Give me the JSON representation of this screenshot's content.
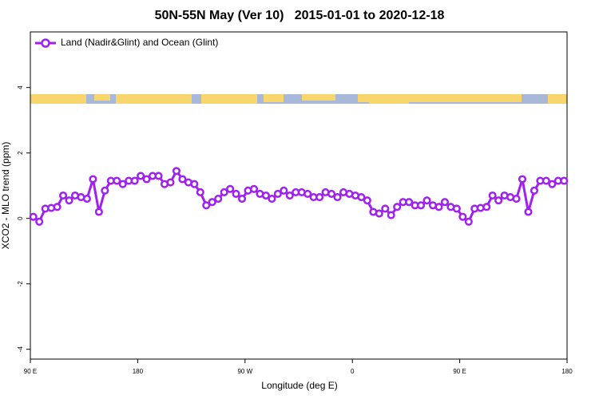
{
  "chart_data": {
    "type": "line",
    "title": "50N-55N May (Ver 10)   2015-01-01 to 2020-12-18",
    "x_label": "Longitude (deg E)",
    "y_label": "XCO2 - MLO trend (ppm)",
    "legend_position": "top-left",
    "xlim": [
      90,
      540
    ],
    "xticks": [
      {
        "value": 90,
        "label": "90 E"
      },
      {
        "value": 180,
        "label": "180"
      },
      {
        "value": 270,
        "label": "90 W"
      },
      {
        "value": 360,
        "label": "0"
      },
      {
        "value": 450,
        "label": "90 E"
      },
      {
        "value": 540,
        "label": "180"
      }
    ],
    "ylim": [
      -4.3,
      5.7
    ],
    "yticks": [
      -4,
      -2,
      0,
      2,
      4
    ],
    "x": [
      92.5,
      97.5,
      102.5,
      107.5,
      112.5,
      117.5,
      122.5,
      127.5,
      132.5,
      137.5,
      142.5,
      147.5,
      152.5,
      157.5,
      162.5,
      167.5,
      172.5,
      177.5,
      182.5,
      187.5,
      192.5,
      197.5,
      202.5,
      207.5,
      212.5,
      217.5,
      222.5,
      227.5,
      232.5,
      237.5,
      242.5,
      247.5,
      252.5,
      257.5,
      262.5,
      267.5,
      272.5,
      277.5,
      282.5,
      287.5,
      292.5,
      297.5,
      302.5,
      307.5,
      312.5,
      317.5,
      322.5,
      327.5,
      332.5,
      337.5,
      342.5,
      347.5,
      352.5,
      357.5,
      362.5,
      367.5,
      372.5,
      377.5,
      382.5,
      387.5,
      392.5,
      397.5,
      402.5,
      407.5,
      412.5,
      417.5,
      422.5,
      427.5,
      432.5,
      437.5,
      442.5,
      447.5,
      452.5,
      457.5,
      462.5,
      467.5,
      472.5,
      477.5,
      482.5,
      487.5,
      492.5,
      497.5,
      502.5,
      507.5,
      512.5,
      517.5,
      522.5,
      527.5,
      532.5,
      537.5
    ],
    "series": [
      {
        "name": "Land (Nadir&Glint) and Ocean (Glint)",
        "color": "#a020f0",
        "values": [
          0.05,
          -0.1,
          0.3,
          0.32,
          0.35,
          0.7,
          0.55,
          0.7,
          0.65,
          0.6,
          1.2,
          0.2,
          0.85,
          1.15,
          1.15,
          1.05,
          1.15,
          1.15,
          1.3,
          1.2,
          1.3,
          1.3,
          1.05,
          1.1,
          1.45,
          1.2,
          1.1,
          1.05,
          0.8,
          0.4,
          0.5,
          0.6,
          0.8,
          0.9,
          0.75,
          0.6,
          0.85,
          0.9,
          0.75,
          0.7,
          0.6,
          0.75,
          0.85,
          0.7,
          0.8,
          0.8,
          0.75,
          0.65,
          0.65,
          0.8,
          0.75,
          0.65,
          0.8,
          0.75,
          0.7,
          0.65,
          0.55,
          0.2,
          0.15,
          0.3,
          0.1,
          0.35,
          0.5,
          0.5,
          0.4,
          0.4,
          0.55,
          0.4,
          0.35,
          0.5,
          0.35,
          0.3,
          0.05,
          -0.1,
          0.3,
          0.32,
          0.35,
          0.7,
          0.55,
          0.7,
          0.65,
          0.6,
          1.2,
          0.2,
          0.85,
          1.15,
          1.15,
          1.05,
          1.15,
          1.15
        ]
      }
    ]
  }
}
